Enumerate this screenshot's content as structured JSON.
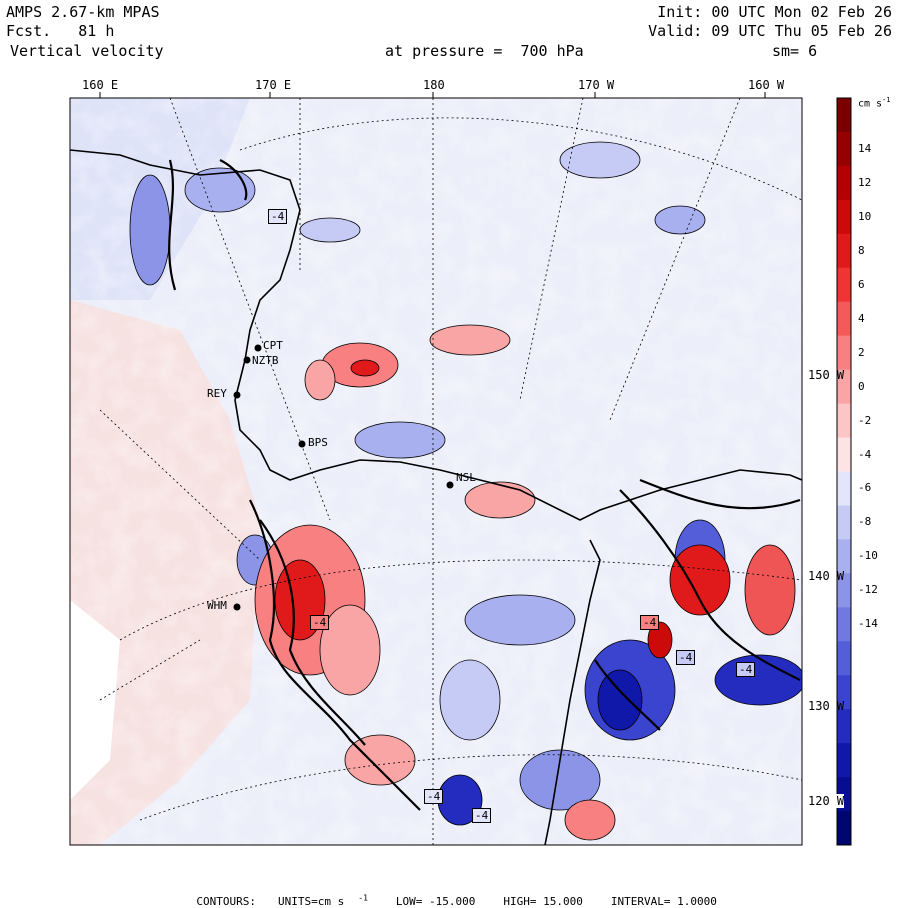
{
  "header": {
    "model": "AMPS 2.67-km MPAS",
    "fcst_label": "Fcst.",
    "fcst_value": "81 h",
    "field": "Vertical velocity",
    "init": "Init: 00 UTC Mon 02 Feb 26",
    "valid": "Valid: 09 UTC Thu 05 Feb 26",
    "level": "at pressure =  700 hPa",
    "smooth": "sm= 6"
  },
  "longitude_labels": [
    "160 E",
    "170 E",
    "180",
    "170 W",
    "160 W"
  ],
  "latitude_labels": [
    "150 W",
    "140 W",
    "130 W",
    "120 W"
  ],
  "colorbar": {
    "units": "cm s",
    "units_exp": "-1",
    "ticks": [
      "14",
      "12",
      "10",
      "8",
      "6",
      "4",
      "2",
      "0",
      "-2",
      "-4",
      "-6",
      "-8",
      "-10",
      "-12",
      "-14"
    ],
    "colors": [
      "#7a0000",
      "#960000",
      "#b30000",
      "#cc0a0a",
      "#e01a1a",
      "#f03333",
      "#f55a5a",
      "#f88080",
      "#faa5a5",
      "#fcc6c6",
      "#fde3e3",
      "#e3e6fb",
      "#c6cbf5",
      "#a9b0ef",
      "#8c94e8",
      "#6f79e0",
      "#545ed8",
      "#3b44ce",
      "#232cbf",
      "#1018aa",
      "#060d90",
      "#00066f"
    ]
  },
  "stations": [
    "CPT",
    "NZTB",
    "REY",
    "BPS",
    "NSL",
    "WHM"
  ],
  "contour_labels": [
    "-4",
    "-4",
    "-4",
    "-4",
    "-4",
    "-4",
    "-4"
  ],
  "footer": {
    "contours": "CONTOURS:",
    "units": "UNITS=cm s",
    "units_exp": "-1",
    "low": "LOW= -15.000",
    "high": "HIGH= 15.000",
    "interval": "INTERVAL= 1.0000"
  }
}
